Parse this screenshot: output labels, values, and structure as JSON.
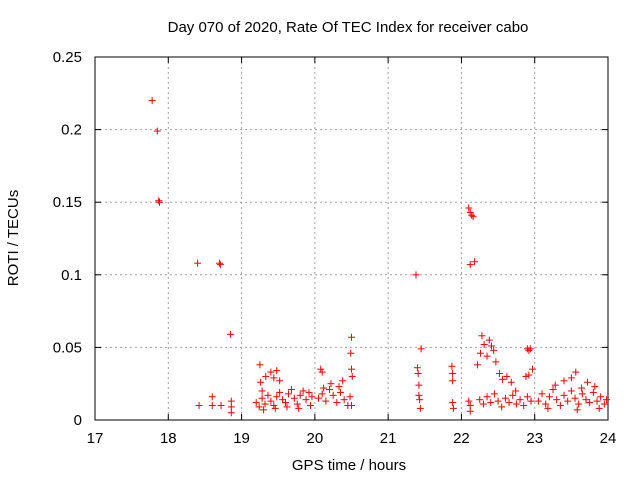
{
  "chart_data": {
    "type": "scatter",
    "title": "Day 070 of 2020, Rate Of TEC Index for receiver cabo",
    "xlabel": "GPS time / hours",
    "ylabel": "ROTI / TECUs",
    "xlim": [
      17,
      24
    ],
    "ylim": [
      0,
      0.25
    ],
    "x_ticks": [
      "17",
      "18",
      "19",
      "20",
      "21",
      "22",
      "23",
      "24"
    ],
    "y_ticks": [
      "0",
      "0.05",
      "0.1",
      "0.15",
      "0.2",
      "0.25"
    ],
    "grid": true,
    "marker": "+",
    "color": "#ff0000",
    "points": [
      [
        17.78,
        0.22
      ],
      [
        17.85,
        0.199
      ],
      [
        17.87,
        0.151
      ],
      [
        17.88,
        0.15
      ],
      [
        18.4,
        0.108
      ],
      [
        18.42,
        0.01
      ],
      [
        18.6,
        0.016
      ],
      [
        18.6,
        0.01
      ],
      [
        18.7,
        0.108
      ],
      [
        18.71,
        0.107
      ],
      [
        18.72,
        0.01
      ],
      [
        18.85,
        0.059
      ],
      [
        18.86,
        0.013
      ],
      [
        18.86,
        0.009
      ],
      [
        18.86,
        0.005
      ],
      [
        19.25,
        0.038
      ],
      [
        19.26,
        0.026
      ],
      [
        19.28,
        0.02
      ],
      [
        19.33,
        0.03
      ],
      [
        19.4,
        0.033
      ],
      [
        19.44,
        0.029
      ],
      [
        19.48,
        0.034
      ],
      [
        19.52,
        0.027
      ],
      [
        19.2,
        0.012
      ],
      [
        19.24,
        0.009
      ],
      [
        19.28,
        0.015
      ],
      [
        19.32,
        0.011
      ],
      [
        19.36,
        0.017
      ],
      [
        19.4,
        0.013
      ],
      [
        19.44,
        0.01
      ],
      [
        19.48,
        0.016
      ],
      [
        19.52,
        0.019
      ],
      [
        19.56,
        0.014
      ],
      [
        19.6,
        0.012
      ],
      [
        19.64,
        0.018
      ],
      [
        19.68,
        0.021
      ],
      [
        19.72,
        0.015
      ],
      [
        19.76,
        0.011
      ],
      [
        19.8,
        0.017
      ],
      [
        19.84,
        0.02
      ],
      [
        19.88,
        0.014
      ],
      [
        19.92,
        0.019
      ],
      [
        19.96,
        0.016
      ],
      [
        19.3,
        0.007
      ],
      [
        19.46,
        0.008
      ],
      [
        19.62,
        0.009
      ],
      [
        19.78,
        0.008
      ],
      [
        19.94,
        0.01
      ],
      [
        20.08,
        0.035
      ],
      [
        20.1,
        0.033
      ],
      [
        20.12,
        0.022
      ],
      [
        20.05,
        0.015
      ],
      [
        20.1,
        0.018
      ],
      [
        20.15,
        0.013
      ],
      [
        20.2,
        0.021
      ],
      [
        20.25,
        0.017
      ],
      [
        20.3,
        0.012
      ],
      [
        20.35,
        0.019
      ],
      [
        20.4,
        0.014
      ],
      [
        20.45,
        0.01
      ],
      [
        20.48,
        0.016
      ],
      [
        20.22,
        0.025
      ],
      [
        20.33,
        0.023
      ],
      [
        20.38,
        0.027
      ],
      [
        20.5,
        0.057
      ],
      [
        20.49,
        0.046
      ],
      [
        20.5,
        0.035
      ],
      [
        20.51,
        0.03
      ],
      [
        20.5,
        0.01
      ],
      [
        21.38,
        0.1
      ],
      [
        21.4,
        0.036
      ],
      [
        21.41,
        0.032
      ],
      [
        21.42,
        0.024
      ],
      [
        21.42,
        0.017
      ],
      [
        21.43,
        0.014
      ],
      [
        21.44,
        0.008
      ],
      [
        21.45,
        0.049
      ],
      [
        21.87,
        0.037
      ],
      [
        21.88,
        0.032
      ],
      [
        21.88,
        0.027
      ],
      [
        21.88,
        0.012
      ],
      [
        21.89,
        0.008
      ],
      [
        22.1,
        0.146
      ],
      [
        22.12,
        0.143
      ],
      [
        22.14,
        0.141
      ],
      [
        22.16,
        0.14
      ],
      [
        22.12,
        0.107
      ],
      [
        22.18,
        0.109
      ],
      [
        22.1,
        0.013
      ],
      [
        22.12,
        0.01
      ],
      [
        22.12,
        0.006
      ],
      [
        22.22,
        0.038
      ],
      [
        22.26,
        0.046
      ],
      [
        22.28,
        0.058
      ],
      [
        22.31,
        0.052
      ],
      [
        22.35,
        0.044
      ],
      [
        22.38,
        0.055
      ],
      [
        22.41,
        0.051
      ],
      [
        22.44,
        0.048
      ],
      [
        22.47,
        0.04
      ],
      [
        22.52,
        0.032
      ],
      [
        22.56,
        0.028
      ],
      [
        22.62,
        0.03
      ],
      [
        22.68,
        0.026
      ],
      [
        22.74,
        0.02
      ],
      [
        22.25,
        0.014
      ],
      [
        22.3,
        0.011
      ],
      [
        22.35,
        0.016
      ],
      [
        22.4,
        0.012
      ],
      [
        22.45,
        0.018
      ],
      [
        22.5,
        0.013
      ],
      [
        22.55,
        0.009
      ],
      [
        22.6,
        0.015
      ],
      [
        22.65,
        0.012
      ],
      [
        22.7,
        0.017
      ],
      [
        22.75,
        0.011
      ],
      [
        22.8,
        0.014
      ],
      [
        22.85,
        0.01
      ],
      [
        22.9,
        0.016
      ],
      [
        22.95,
        0.013
      ],
      [
        22.9,
        0.049
      ],
      [
        22.92,
        0.048
      ],
      [
        22.94,
        0.049
      ],
      [
        22.88,
        0.03
      ],
      [
        22.92,
        0.031
      ],
      [
        22.97,
        0.035
      ],
      [
        23.05,
        0.013
      ],
      [
        23.1,
        0.018
      ],
      [
        23.15,
        0.011
      ],
      [
        23.2,
        0.016
      ],
      [
        23.25,
        0.021
      ],
      [
        23.3,
        0.014
      ],
      [
        23.35,
        0.01
      ],
      [
        23.4,
        0.017
      ],
      [
        23.45,
        0.013
      ],
      [
        23.5,
        0.02
      ],
      [
        23.55,
        0.015
      ],
      [
        23.6,
        0.011
      ],
      [
        23.65,
        0.018
      ],
      [
        23.7,
        0.014
      ],
      [
        23.75,
        0.012
      ],
      [
        23.8,
        0.019
      ],
      [
        23.85,
        0.013
      ],
      [
        23.9,
        0.016
      ],
      [
        23.95,
        0.011
      ],
      [
        23.98,
        0.014
      ],
      [
        23.28,
        0.024
      ],
      [
        23.4,
        0.027
      ],
      [
        23.5,
        0.029
      ],
      [
        23.56,
        0.033
      ],
      [
        23.64,
        0.022
      ],
      [
        23.72,
        0.026
      ],
      [
        23.82,
        0.023
      ],
      [
        23.18,
        0.008
      ],
      [
        23.58,
        0.007
      ],
      [
        23.88,
        0.008
      ]
    ]
  }
}
